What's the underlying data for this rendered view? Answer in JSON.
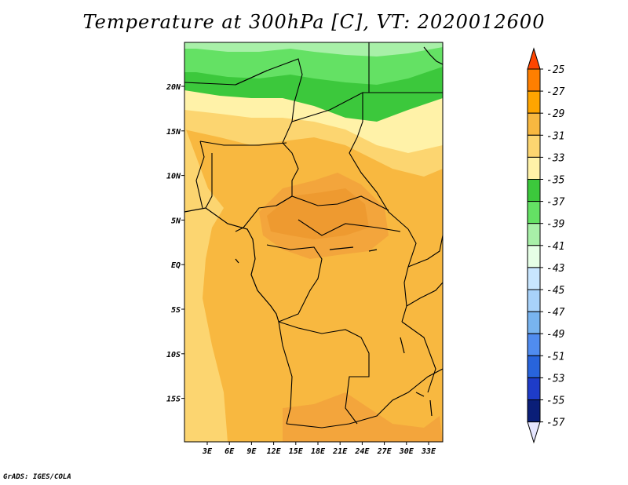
{
  "title": "Temperature at 300hPa [C], VT: 2020012600",
  "credit": "GrADS: IGES/COLA",
  "map": {
    "lat_labels": [
      "20N",
      "15N",
      "10N",
      "5N",
      "EQ",
      "5S",
      "10S",
      "15S"
    ],
    "lon_labels": [
      "3E",
      "6E",
      "9E",
      "12E",
      "15E",
      "18E",
      "21E",
      "24E",
      "27E",
      "30E",
      "33E"
    ]
  },
  "colorbar": {
    "labels": [
      "-25",
      "-27",
      "-29",
      "-31",
      "-33",
      "-35",
      "-37",
      "-39",
      "-41",
      "-43",
      "-45",
      "-47",
      "-49",
      "-51",
      "-53",
      "-55",
      "-57"
    ],
    "colors": [
      "#ff4500",
      "#ff7f00",
      "#ffa500",
      "#f8b840",
      "#fcd570",
      "#fff2a8",
      "#3cc83c",
      "#64e164",
      "#a8f0a8",
      "#e6ffe6",
      "#c8e6ff",
      "#a8d2fa",
      "#78b4f0",
      "#508cf0",
      "#2864dc",
      "#1e3cc8",
      "#0a1e78",
      "#e6e6ff"
    ]
  }
}
